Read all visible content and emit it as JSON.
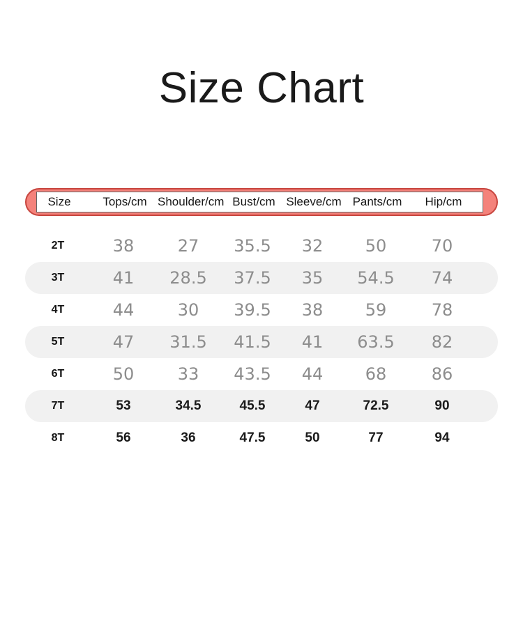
{
  "page": {
    "title": "Size Chart"
  },
  "chart_data": {
    "type": "table",
    "title": "Size Chart",
    "columns": [
      "Size",
      "Tops/cm",
      "Shoulder/cm",
      "Bust/cm",
      "Sleeve/cm",
      "Pants/cm",
      "Hip/cm"
    ],
    "rows": [
      {
        "size": "2T",
        "values": [
          "38",
          "27",
          "35.5",
          "32",
          "50",
          "70"
        ]
      },
      {
        "size": "3T",
        "values": [
          "41",
          "28.5",
          "37.5",
          "35",
          "54.5",
          "74"
        ]
      },
      {
        "size": "4T",
        "values": [
          "44",
          "30",
          "39.5",
          "38",
          "59",
          "78"
        ]
      },
      {
        "size": "5T",
        "values": [
          "47",
          "31.5",
          "41.5",
          "41",
          "63.5",
          "82"
        ]
      },
      {
        "size": "6T",
        "values": [
          "50",
          "33",
          "43.5",
          "44",
          "68",
          "86"
        ]
      },
      {
        "size": "7T",
        "values": [
          "53",
          "34.5",
          "45.5",
          "47",
          "72.5",
          "90"
        ]
      },
      {
        "size": "8T",
        "values": [
          "56",
          "36",
          "47.5",
          "50",
          "77",
          "94"
        ]
      }
    ],
    "shaded_rows": [
      "3T",
      "5T",
      "7T"
    ],
    "emphasized_rows": [
      "7T",
      "8T"
    ],
    "layout_hints": {
      "header_style": "salmon pill with white inset strip",
      "row_shading": "alternating rounded gray pills"
    }
  },
  "colors": {
    "accent": "#f4827b",
    "accent_border": "#c7453e",
    "row_shade": "#f1f1f1",
    "value_gray": "#8d8d8d",
    "text_dark": "#1a1a1a"
  }
}
